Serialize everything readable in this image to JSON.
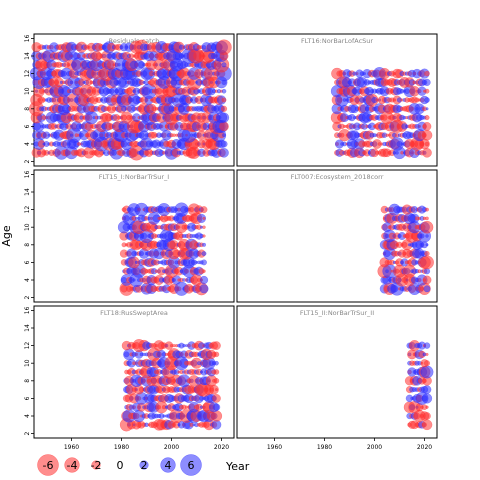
{
  "chart_data": {
    "type": "scatter",
    "subtype": "bubble-residuals",
    "ylabel": "Age",
    "xlabel": "Year",
    "xlim": [
      1945,
      2025
    ],
    "ylim": [
      1.5,
      16.5
    ],
    "xticks": [
      1960,
      1980,
      2000,
      2020
    ],
    "yticks": [
      2,
      4,
      6,
      8,
      10,
      12,
      14,
      16
    ],
    "legend": {
      "values": [
        -6,
        -4,
        -2,
        0,
        2,
        4,
        6
      ],
      "title": "Year",
      "placement": "bottom"
    },
    "colors": {
      "negative": "#ff3030",
      "positive": "#2f2fff",
      "frame": "#000000",
      "title": "#888888"
    },
    "opacity": 0.55,
    "panels": [
      {
        "title": "Residuals catch",
        "xrange": [
          1946,
          2021
        ],
        "ages": [
          3,
          15
        ],
        "seed": 11,
        "scale": 1.0
      },
      {
        "title": "FLT16:NorBarLofAcSur",
        "xrange": [
          1985,
          2021
        ],
        "ages": [
          3,
          12
        ],
        "seed": 23,
        "scale": 0.85
      },
      {
        "title": "FLT15_I:NorBarTrSur_I",
        "xrange": [
          1981,
          2013
        ],
        "ages": [
          3,
          12
        ],
        "seed": 37,
        "scale": 0.9
      },
      {
        "title": "FLT007:Ecosystem_2018corr",
        "xrange": [
          2004,
          2021
        ],
        "ages": [
          3,
          12
        ],
        "seed": 41,
        "scale": 0.95
      },
      {
        "title": "FLT18:RusSweptArea",
        "xrange": [
          1982,
          2018
        ],
        "ages": [
          3,
          12
        ],
        "seed": 53,
        "scale": 0.9
      },
      {
        "title": "FLT15_II:NorBarTrSur_II",
        "xrange": [
          2014,
          2021
        ],
        "ages": [
          3,
          12
        ],
        "seed": 67,
        "scale": 0.8
      }
    ]
  }
}
